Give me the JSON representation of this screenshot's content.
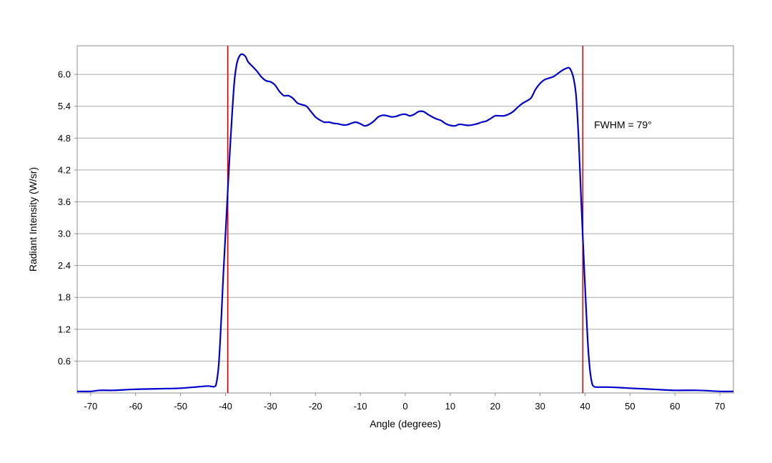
{
  "chart_data": {
    "type": "line",
    "title": "",
    "xlabel": "Angle (degrees)",
    "ylabel": "Radiant Intensity (W/sr)",
    "xlim": [
      -73,
      73
    ],
    "ylim": [
      0,
      6.54
    ],
    "x_ticks": [
      -70,
      -60,
      -50,
      -40,
      -30,
      -20,
      -10,
      0,
      10,
      20,
      30,
      40,
      50,
      60,
      70
    ],
    "y_ticks": [
      0.6,
      1.2,
      1.8,
      2.4,
      3.0,
      3.6,
      4.2,
      4.8,
      5.4,
      6.0
    ],
    "grid": "horizontal",
    "series": [
      {
        "color": "#0000cc",
        "points": [
          [
            -73,
            0.03
          ],
          [
            -70,
            0.03
          ],
          [
            -68,
            0.05
          ],
          [
            -65,
            0.05
          ],
          [
            -60,
            0.07
          ],
          [
            -55,
            0.08
          ],
          [
            -50,
            0.09
          ],
          [
            -47,
            0.11
          ],
          [
            -44,
            0.13
          ],
          [
            -42.5,
            0.12
          ],
          [
            -42,
            0.2
          ],
          [
            -41.5,
            0.55
          ],
          [
            -41,
            1.3
          ],
          [
            -40.5,
            2.2
          ],
          [
            -40,
            3.0
          ],
          [
            -39.5,
            3.8
          ],
          [
            -39,
            4.6
          ],
          [
            -38.5,
            5.3
          ],
          [
            -38,
            5.9
          ],
          [
            -37.5,
            6.2
          ],
          [
            -37,
            6.33
          ],
          [
            -36.5,
            6.38
          ],
          [
            -36,
            6.37
          ],
          [
            -35.5,
            6.33
          ],
          [
            -35,
            6.24
          ],
          [
            -34,
            6.15
          ],
          [
            -33,
            6.06
          ],
          [
            -32,
            5.95
          ],
          [
            -31,
            5.88
          ],
          [
            -30,
            5.86
          ],
          [
            -29,
            5.8
          ],
          [
            -28,
            5.68
          ],
          [
            -27,
            5.6
          ],
          [
            -26,
            5.6
          ],
          [
            -25,
            5.55
          ],
          [
            -24,
            5.46
          ],
          [
            -23,
            5.43
          ],
          [
            -22,
            5.4
          ],
          [
            -21,
            5.3
          ],
          [
            -20,
            5.2
          ],
          [
            -19,
            5.14
          ],
          [
            -18,
            5.1
          ],
          [
            -17,
            5.1
          ],
          [
            -16,
            5.08
          ],
          [
            -15,
            5.07
          ],
          [
            -14,
            5.05
          ],
          [
            -13,
            5.05
          ],
          [
            -12,
            5.08
          ],
          [
            -11,
            5.1
          ],
          [
            -10,
            5.07
          ],
          [
            -9,
            5.03
          ],
          [
            -8,
            5.06
          ],
          [
            -7,
            5.12
          ],
          [
            -6,
            5.2
          ],
          [
            -5,
            5.23
          ],
          [
            -4,
            5.22
          ],
          [
            -3,
            5.2
          ],
          [
            -2,
            5.21
          ],
          [
            -1,
            5.24
          ],
          [
            0,
            5.25
          ],
          [
            1,
            5.22
          ],
          [
            2,
            5.25
          ],
          [
            3,
            5.3
          ],
          [
            4,
            5.3
          ],
          [
            5,
            5.25
          ],
          [
            6,
            5.2
          ],
          [
            7,
            5.16
          ],
          [
            8,
            5.13
          ],
          [
            9,
            5.07
          ],
          [
            10,
            5.04
          ],
          [
            11,
            5.03
          ],
          [
            12,
            5.06
          ],
          [
            13,
            5.05
          ],
          [
            14,
            5.04
          ],
          [
            15,
            5.05
          ],
          [
            16,
            5.07
          ],
          [
            17,
            5.1
          ],
          [
            18,
            5.12
          ],
          [
            19,
            5.17
          ],
          [
            20,
            5.22
          ],
          [
            21,
            5.22
          ],
          [
            22,
            5.22
          ],
          [
            23,
            5.25
          ],
          [
            24,
            5.3
          ],
          [
            25,
            5.38
          ],
          [
            26,
            5.45
          ],
          [
            27,
            5.5
          ],
          [
            28,
            5.56
          ],
          [
            29,
            5.72
          ],
          [
            30,
            5.83
          ],
          [
            31,
            5.9
          ],
          [
            32,
            5.93
          ],
          [
            33,
            5.96
          ],
          [
            34,
            6.02
          ],
          [
            35,
            6.08
          ],
          [
            36,
            6.12
          ],
          [
            36.5,
            6.12
          ],
          [
            37,
            6.05
          ],
          [
            37.5,
            5.9
          ],
          [
            38,
            5.6
          ],
          [
            38.5,
            4.9
          ],
          [
            39,
            3.9
          ],
          [
            39.5,
            2.9
          ],
          [
            40,
            2.0
          ],
          [
            40.5,
            1.1
          ],
          [
            41,
            0.5
          ],
          [
            41.5,
            0.2
          ],
          [
            42,
            0.12
          ],
          [
            43,
            0.11
          ],
          [
            45,
            0.11
          ],
          [
            48,
            0.1
          ],
          [
            50,
            0.09
          ],
          [
            55,
            0.07
          ],
          [
            60,
            0.05
          ],
          [
            65,
            0.05
          ],
          [
            70,
            0.03
          ],
          [
            73,
            0.03
          ]
        ]
      }
    ],
    "reference_lines": [
      {
        "x": -39.5,
        "color": "#cc0000"
      },
      {
        "x": 39.5,
        "color": "#cc0000"
      }
    ],
    "annotations": [
      {
        "text": "FWHM = 79°",
        "x": 42,
        "y": 5.05
      }
    ]
  }
}
